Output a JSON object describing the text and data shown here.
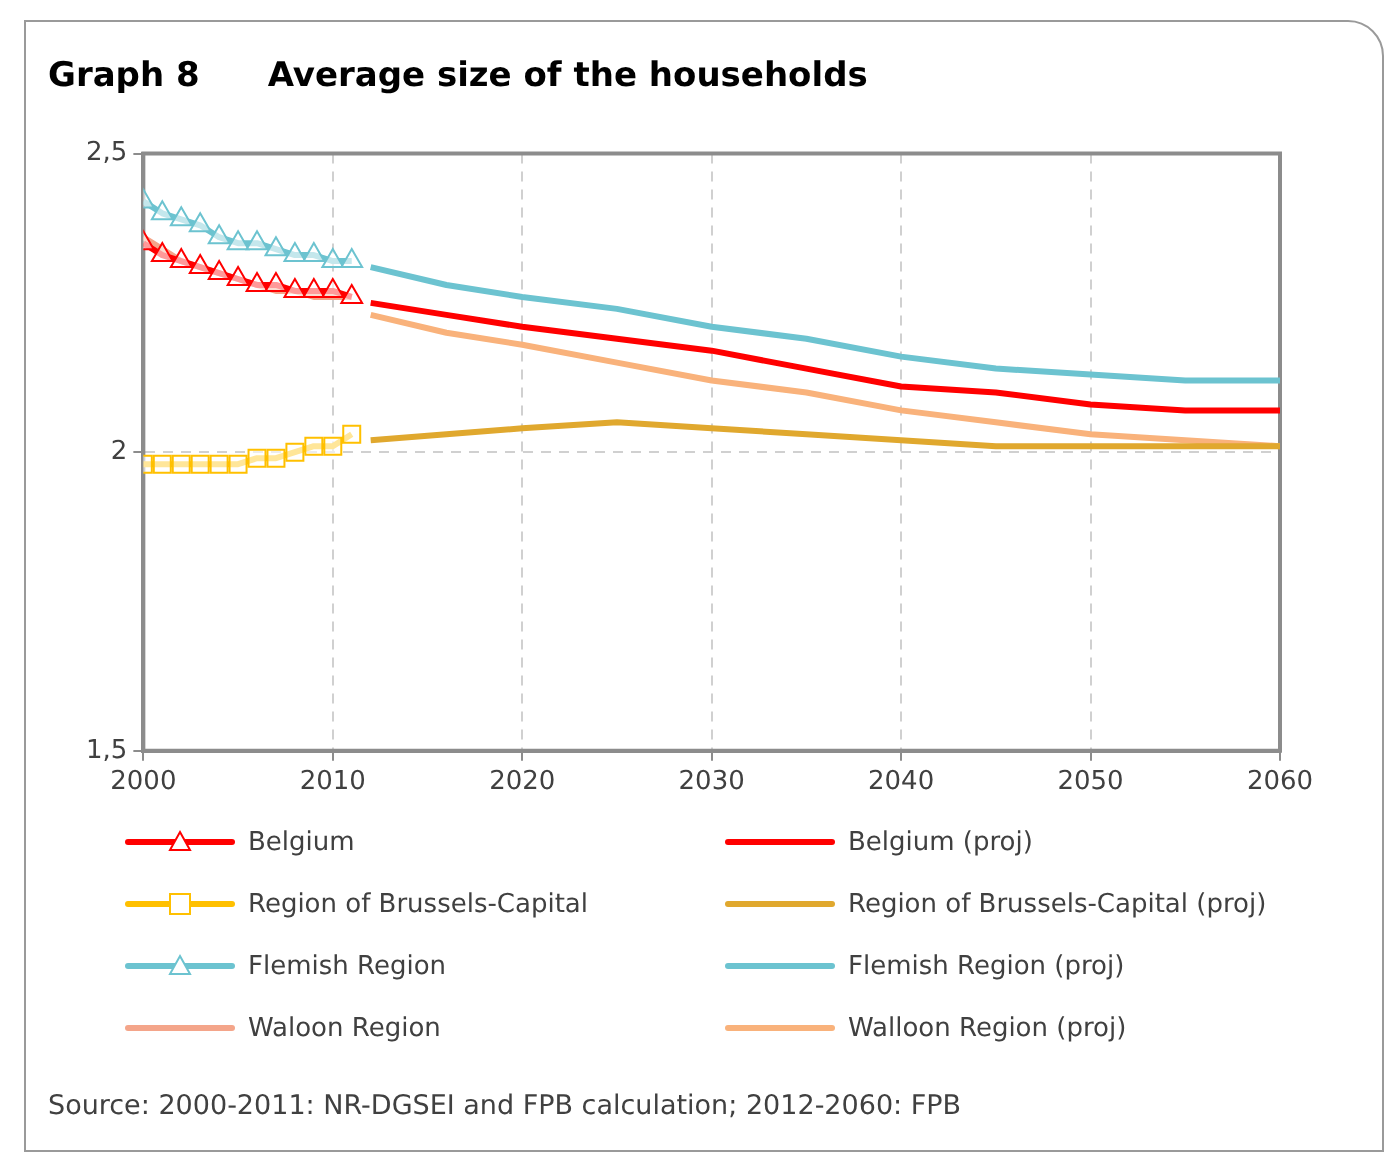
{
  "chart_data": {
    "type": "line",
    "title": "Graph 8  Average size of the households",
    "annotations": [
      "Source: 2000-2011: NR-DGSEI and FPB calculation; 2012-2060: FPB"
    ],
    "xlim": [
      2000,
      2060
    ],
    "xticks": [
      2000,
      2010,
      2020,
      2030,
      2040,
      2050,
      2060
    ],
    "ylim": [
      1.5,
      2.5
    ],
    "yticks": [
      {
        "value": 1.5,
        "label": "1,5"
      },
      {
        "value": 2,
        "label": "2"
      },
      {
        "value": 2.5,
        "label": "2,5"
      }
    ],
    "grid": true,
    "legend": "bottom",
    "series": [
      {
        "name": "Belgium",
        "color": "#ff0000",
        "marker": "triangle",
        "x": [
          2000,
          2001,
          2002,
          2003,
          2004,
          2005,
          2006,
          2007,
          2008,
          2009,
          2010,
          2011
        ],
        "values": [
          2.35,
          2.33,
          2.32,
          2.31,
          2.3,
          2.29,
          2.28,
          2.28,
          2.27,
          2.27,
          2.27,
          2.26
        ]
      },
      {
        "name": "Belgium (proj)",
        "color": "#ff0000",
        "marker": "none",
        "x": [
          2012,
          2016,
          2020,
          2025,
          2030,
          2035,
          2040,
          2045,
          2050,
          2055,
          2060
        ],
        "values": [
          2.25,
          2.23,
          2.21,
          2.19,
          2.17,
          2.14,
          2.11,
          2.1,
          2.08,
          2.07,
          2.07
        ]
      },
      {
        "name": "Region of Brussels-Capital",
        "color": "#ffc000",
        "marker": "square",
        "x": [
          2000,
          2001,
          2002,
          2003,
          2004,
          2005,
          2006,
          2007,
          2008,
          2009,
          2010,
          2011
        ],
        "values": [
          1.98,
          1.98,
          1.98,
          1.98,
          1.98,
          1.98,
          1.99,
          1.99,
          2.0,
          2.01,
          2.01,
          2.03
        ]
      },
      {
        "name": "Region of Brussels-Capital (proj)",
        "color": "#e0a82e",
        "marker": "none",
        "x": [
          2012,
          2016,
          2020,
          2025,
          2030,
          2035,
          2040,
          2045,
          2050,
          2055,
          2060
        ],
        "values": [
          2.02,
          2.03,
          2.04,
          2.05,
          2.04,
          2.03,
          2.02,
          2.01,
          2.01,
          2.01,
          2.01
        ]
      },
      {
        "name": "Flemish Region",
        "color": "#6cc3d0",
        "marker": "triangle",
        "x": [
          2000,
          2001,
          2002,
          2003,
          2004,
          2005,
          2006,
          2007,
          2008,
          2009,
          2010,
          2011
        ],
        "values": [
          2.42,
          2.4,
          2.39,
          2.38,
          2.36,
          2.35,
          2.35,
          2.34,
          2.33,
          2.33,
          2.32,
          2.32
        ]
      },
      {
        "name": "Flemish Region (proj)",
        "color": "#6cc3d0",
        "marker": "none",
        "x": [
          2012,
          2016,
          2020,
          2025,
          2030,
          2035,
          2040,
          2045,
          2050,
          2055,
          2060
        ],
        "values": [
          2.31,
          2.28,
          2.26,
          2.24,
          2.21,
          2.19,
          2.16,
          2.14,
          2.13,
          2.12,
          2.12
        ]
      },
      {
        "name": "Waloon Region",
        "color": "#f4a58a",
        "marker": "none",
        "x": [
          2000,
          2001,
          2002,
          2003,
          2004,
          2005,
          2006,
          2007,
          2008,
          2009,
          2010,
          2011
        ],
        "values": [
          2.36,
          2.34,
          2.32,
          2.31,
          2.3,
          2.29,
          2.28,
          2.27,
          2.27,
          2.26,
          2.26,
          2.26
        ]
      },
      {
        "name": "Walloon Region (proj)",
        "color": "#f9b27b",
        "marker": "none",
        "x": [
          2012,
          2016,
          2020,
          2025,
          2030,
          2035,
          2040,
          2045,
          2050,
          2055,
          2060
        ],
        "values": [
          2.23,
          2.2,
          2.18,
          2.15,
          2.12,
          2.1,
          2.07,
          2.05,
          2.03,
          2.02,
          2.01
        ]
      }
    ]
  }
}
